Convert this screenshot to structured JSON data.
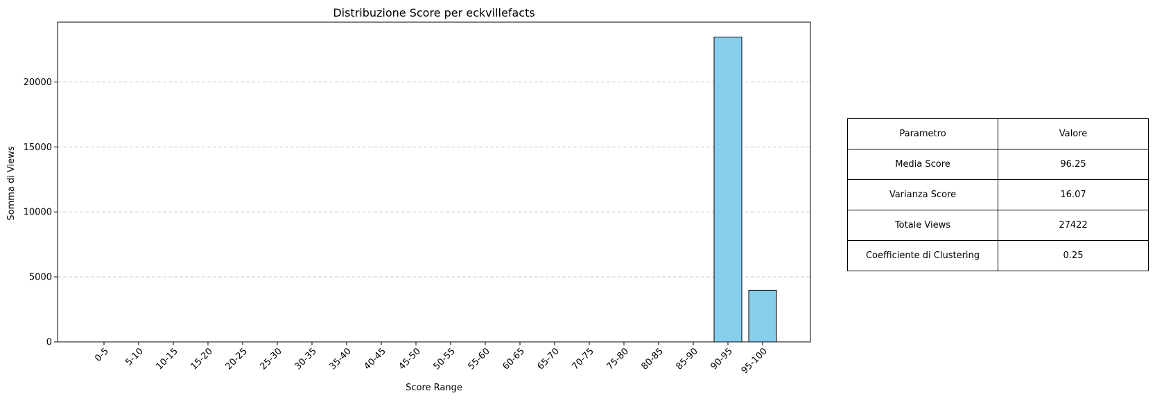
{
  "chart_data": {
    "type": "bar",
    "title": "Distribuzione Score per eckvillefacts",
    "xlabel": "Score Range",
    "ylabel": "Somma di Views",
    "categories": [
      "0-5",
      "5-10",
      "10-15",
      "15-20",
      "20-25",
      "25-30",
      "30-35",
      "35-40",
      "40-45",
      "45-50",
      "50-55",
      "55-60",
      "60-65",
      "65-70",
      "70-75",
      "75-80",
      "80-85",
      "85-90",
      "90-95",
      "95-100"
    ],
    "values": [
      0,
      0,
      0,
      0,
      0,
      0,
      0,
      0,
      0,
      0,
      0,
      0,
      0,
      0,
      0,
      0,
      0,
      0,
      23450,
      3972
    ],
    "ylim": [
      0,
      24600
    ],
    "yticks": [
      0,
      5000,
      10000,
      15000,
      20000
    ],
    "grid": "y-dashed",
    "bar_color": "#87ceeb",
    "bar_edge_color": "#000000"
  },
  "table": {
    "header": [
      "Parametro",
      "Valore"
    ],
    "rows": [
      [
        "Media Score",
        "96.25"
      ],
      [
        "Varianza Score",
        "16.07"
      ],
      [
        "Totale Views",
        "27422"
      ],
      [
        "Coefficiente di Clustering",
        "0.25"
      ]
    ]
  }
}
